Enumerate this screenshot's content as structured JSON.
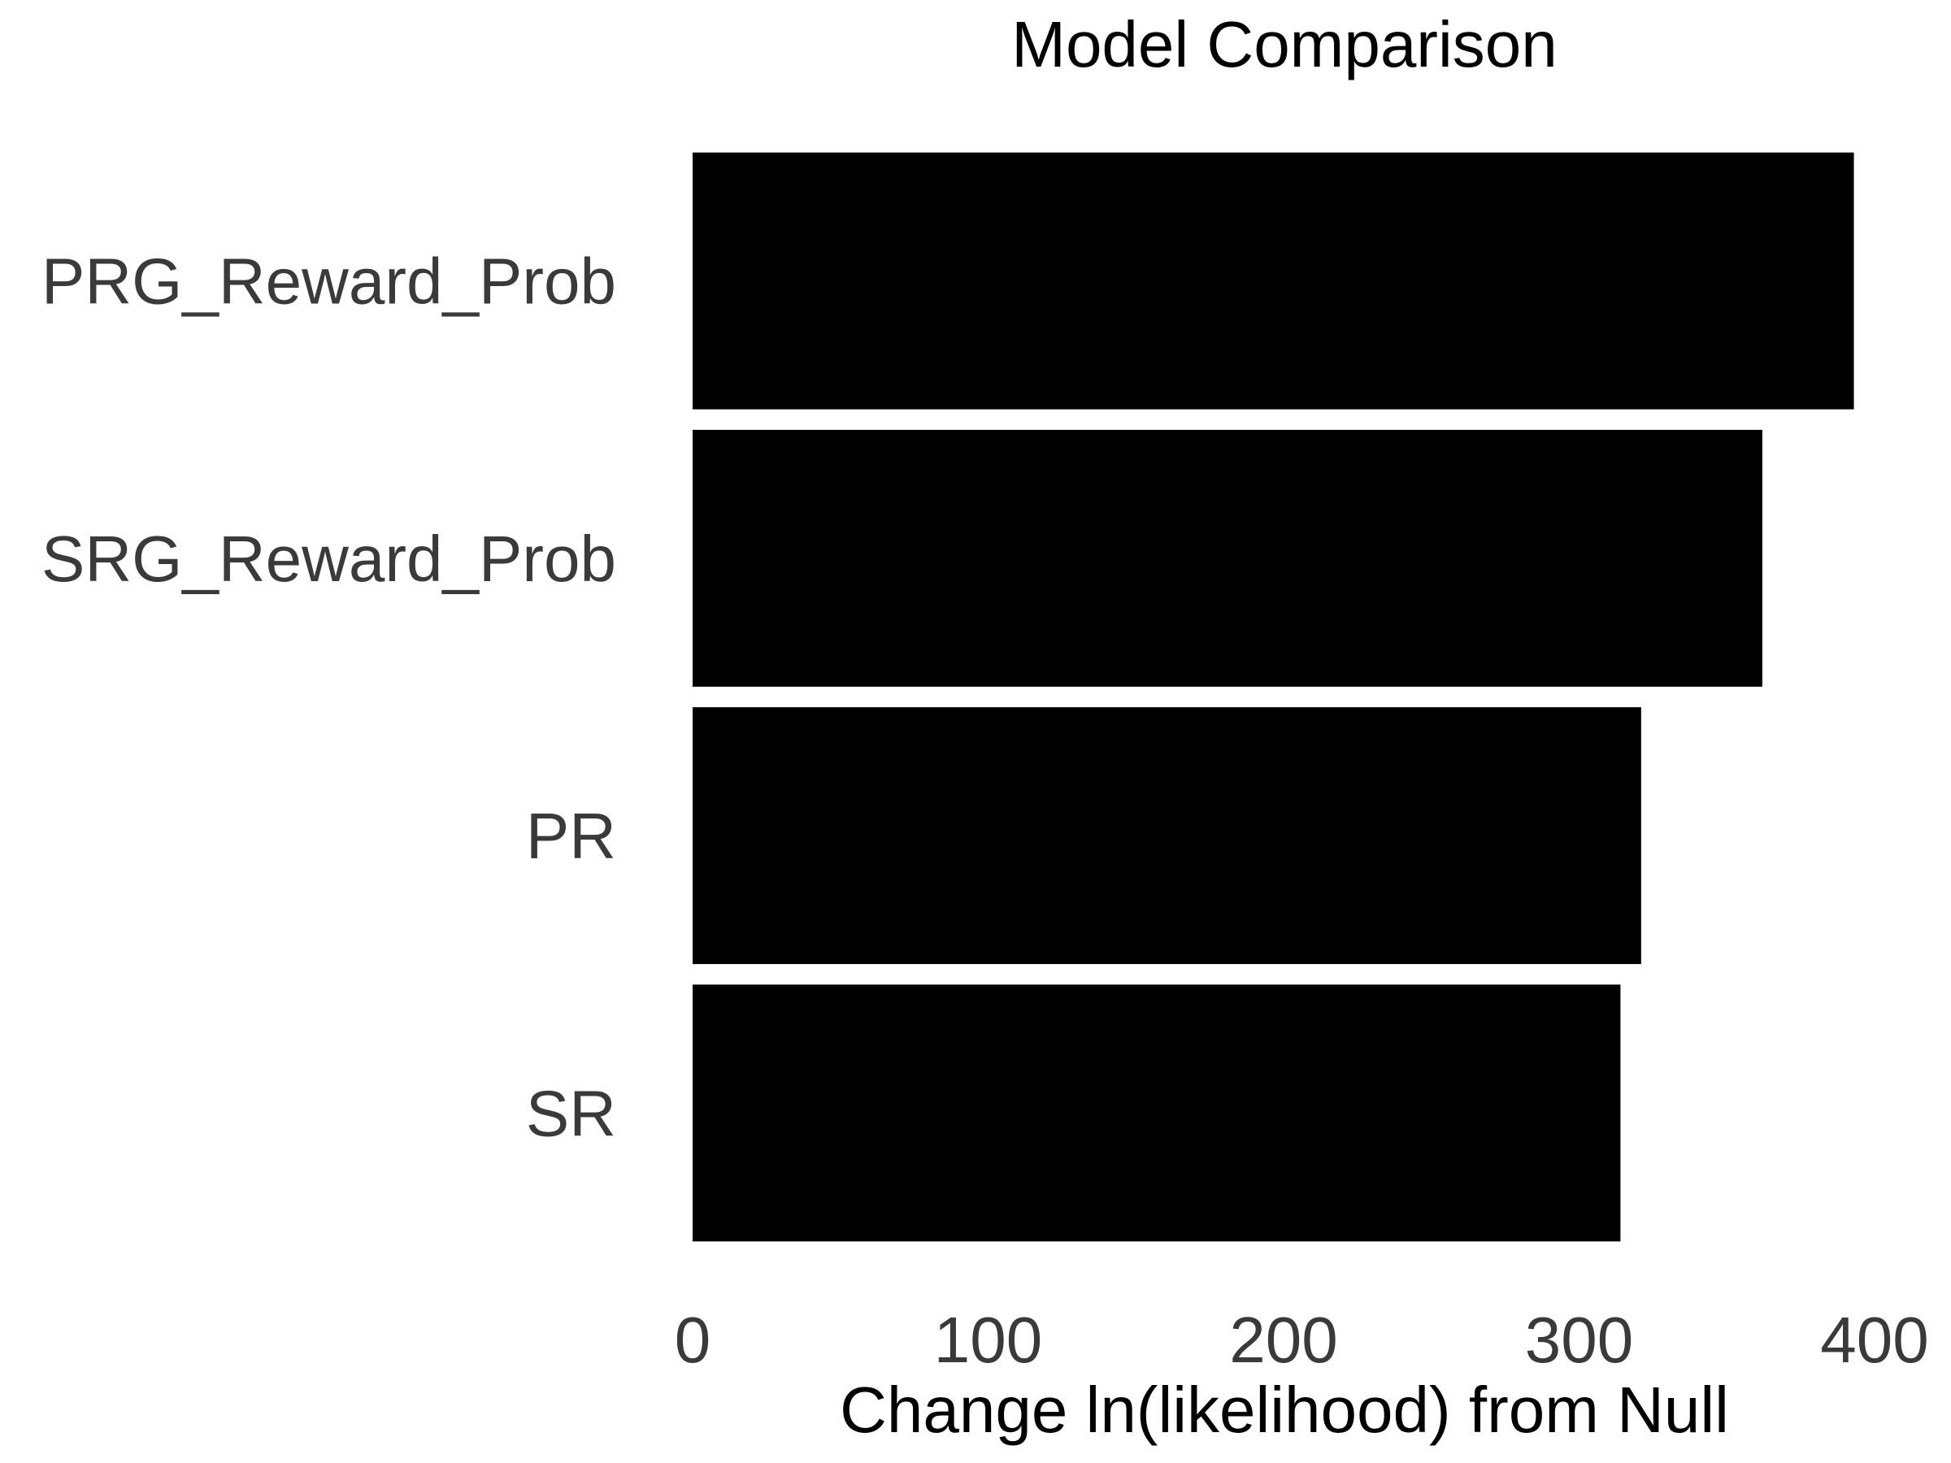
{
  "chart_data": {
    "type": "bar",
    "orientation": "horizontal",
    "title": "Model Comparison",
    "xlabel": "Change ln(likelihood) from Null",
    "ylabel": "",
    "categories": [
      "PRG_Reward_Prob",
      "SRG_Reward_Prob",
      "PR",
      "SR"
    ],
    "values": [
      393,
      362,
      321,
      314
    ],
    "xlim": [
      0,
      400
    ],
    "xticks": [
      "0",
      "100",
      "200",
      "300",
      "400"
    ],
    "grid": false,
    "legend": "none",
    "bar_color": "#000000"
  }
}
